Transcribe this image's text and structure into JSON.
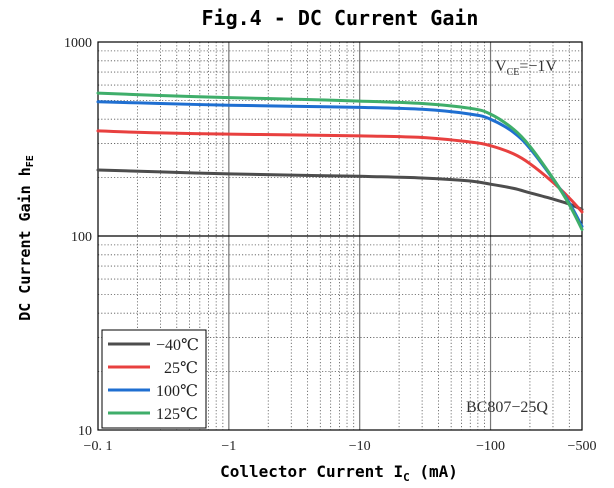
{
  "chart_data": {
    "type": "line",
    "title": "Fig.4 - DC Current Gain",
    "xlabel": {
      "main": "Collector Current I",
      "sub": "C",
      "unit": " (mA)"
    },
    "ylabel": {
      "main": "DC Current Gain h",
      "sub": "FE"
    },
    "x_scale": "log",
    "y_scale": "log",
    "xlim": [
      -0.1,
      -500
    ],
    "ylim": [
      10,
      1000
    ],
    "x_ticks": [
      {
        "value": -0.1,
        "label": "−0. 1"
      },
      {
        "value": -1,
        "label": "−1"
      },
      {
        "value": -10,
        "label": "−10"
      },
      {
        "value": -100,
        "label": "−100"
      },
      {
        "value": -500,
        "label": "−500"
      }
    ],
    "y_ticks": [
      {
        "value": 10,
        "label": "10"
      },
      {
        "value": 100,
        "label": "100"
      },
      {
        "value": 1000,
        "label": "1000"
      }
    ],
    "grid": true,
    "legend_position": "bottom-left",
    "annotations": {
      "condition": {
        "main": "V",
        "sub": "CE",
        "rest": "=−1V"
      },
      "part_number": "BC807−25Q"
    },
    "series": [
      {
        "name": "−40℃",
        "color": "#4d4d4d",
        "points": [
          [
            -0.1,
            219
          ],
          [
            -0.3,
            214
          ],
          [
            -1,
            209
          ],
          [
            -3,
            206
          ],
          [
            -10,
            203
          ],
          [
            -30,
            199
          ],
          [
            -70,
            192
          ],
          [
            -100,
            185
          ],
          [
            -150,
            176
          ],
          [
            -200,
            167
          ],
          [
            -300,
            155
          ],
          [
            -400,
            146
          ],
          [
            -500,
            137
          ]
        ]
      },
      {
        "name": "  25℃",
        "color": "#e8403f",
        "points": [
          [
            -0.1,
            348
          ],
          [
            -0.3,
            340
          ],
          [
            -1,
            335
          ],
          [
            -3,
            332
          ],
          [
            -10,
            328
          ],
          [
            -30,
            322
          ],
          [
            -70,
            305
          ],
          [
            -100,
            292
          ],
          [
            -150,
            265
          ],
          [
            -200,
            236
          ],
          [
            -300,
            189
          ],
          [
            -400,
            157
          ],
          [
            -500,
            133
          ]
        ]
      },
      {
        "name": "100℃",
        "color": "#1f6fd1",
        "points": [
          [
            -0.1,
            492
          ],
          [
            -0.3,
            482
          ],
          [
            -1,
            472
          ],
          [
            -3,
            467
          ],
          [
            -10,
            460
          ],
          [
            -30,
            450
          ],
          [
            -70,
            425
          ],
          [
            -100,
            400
          ],
          [
            -150,
            342
          ],
          [
            -200,
            283
          ],
          [
            -300,
            197
          ],
          [
            -400,
            148
          ],
          [
            -500,
            112
          ]
        ]
      },
      {
        "name": "125℃",
        "color": "#3fae6a",
        "points": [
          [
            -0.1,
            545
          ],
          [
            -0.3,
            530
          ],
          [
            -1,
            517
          ],
          [
            -3,
            508
          ],
          [
            -10,
            496
          ],
          [
            -30,
            482
          ],
          [
            -70,
            455
          ],
          [
            -100,
            425
          ],
          [
            -150,
            355
          ],
          [
            -200,
            290
          ],
          [
            -300,
            198
          ],
          [
            -400,
            145
          ],
          [
            -500,
            108
          ]
        ]
      }
    ]
  }
}
